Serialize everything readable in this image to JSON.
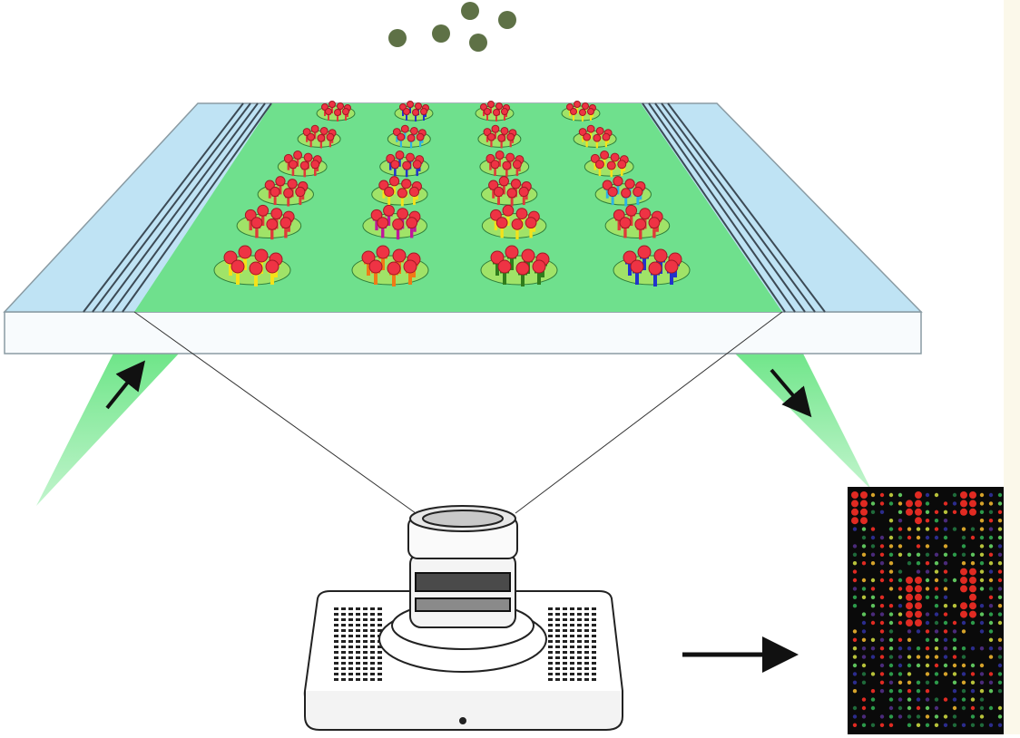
{
  "colors": {
    "background": "#ffffff",
    "right_edge": "#fbf8ea",
    "slide_glass": "#bfe3f4",
    "slide_active_area": "#6fe08d",
    "slide_side": "#f8fbfd",
    "light_beam": "#4fe06f",
    "antigen": "#ee3344",
    "analyte_bead": "#5e7146",
    "readout_background": "#0a0a0a"
  },
  "spot_colors": {
    "yellow": "#f4e21a",
    "red": "#e0383a",
    "blue": "#2233cc",
    "cyan": "#2bb2e6",
    "magenta": "#c0179c",
    "orange": "#f07a16",
    "green": "#2f7d1c",
    "lime": "#c8e64a"
  },
  "spot_grid": [
    [
      "red",
      "blue",
      "red",
      "yellow"
    ],
    [
      "red",
      "cyan",
      "red",
      "yellow"
    ],
    [
      "red",
      "blue",
      "red",
      "yellow"
    ],
    [
      "red",
      "yellow",
      "red",
      "cyan"
    ],
    [
      "red",
      "magenta",
      "yellow",
      "red"
    ],
    [
      "yellow",
      "orange",
      "green",
      "blue"
    ]
  ],
  "readout_palette": [
    "#e02a22",
    "#2c9a4a",
    "#5dc25c",
    "#d6a32a",
    "#b7c23a",
    "#2b2c8c",
    "#4a2a7a",
    "#1f6a3a"
  ],
  "icons": {
    "incoming_light_arrow": "arrow-up-right-icon",
    "outgoing_light_arrow": "arrow-down-right-icon",
    "output_arrow": "arrow-right-icon",
    "camera": "camera-icon"
  }
}
